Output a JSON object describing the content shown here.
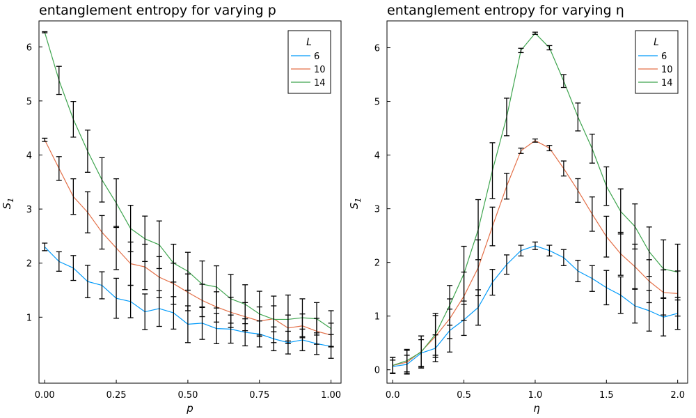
{
  "chart_data": [
    {
      "type": "line",
      "title": "entanglement entropy for varying p",
      "xlabel": "p",
      "ylabel": "S",
      "ylabel_subscript": "1",
      "xlim": [
        -0.02,
        1.035
      ],
      "ylim": [
        -0.22,
        6.48
      ],
      "xticks": [
        0.0,
        0.25,
        0.5,
        0.75,
        1.0
      ],
      "xtick_labels": [
        "0.00",
        "0.25",
        "0.50",
        "0.75",
        "1.00"
      ],
      "yticks": [
        1,
        2,
        3,
        4,
        5,
        6
      ],
      "ytick_labels": [
        "1",
        "2",
        "3",
        "4",
        "5",
        "6"
      ],
      "grid": false,
      "legend_title": "L",
      "legend_position": "top-right",
      "x": [
        0.0,
        0.05,
        0.1,
        0.15,
        0.2,
        0.25,
        0.3,
        0.35,
        0.4,
        0.45,
        0.5,
        0.55,
        0.6,
        0.65,
        0.7,
        0.75,
        0.8,
        0.85,
        0.9,
        0.95,
        1.0
      ],
      "series": [
        {
          "name": "6",
          "color": "#009AFA",
          "values": [
            2.3,
            2.03,
            1.91,
            1.66,
            1.59,
            1.35,
            1.29,
            1.1,
            1.16,
            1.08,
            0.87,
            0.89,
            0.79,
            0.78,
            0.72,
            0.69,
            0.6,
            0.53,
            0.58,
            0.51,
            0.46
          ],
          "errors": [
            0.07,
            0.18,
            0.23,
            0.3,
            0.25,
            0.37,
            0.3,
            0.33,
            0.33,
            0.3,
            0.34,
            0.3,
            0.28,
            0.26,
            0.25,
            0.24,
            0.22,
            0.21,
            0.2,
            0.2,
            0.22
          ]
        },
        {
          "name": "10",
          "color": "#E36F47",
          "values": [
            4.28,
            3.75,
            3.23,
            2.94,
            2.57,
            2.28,
            1.99,
            1.93,
            1.74,
            1.62,
            1.46,
            1.31,
            1.19,
            1.09,
            1.01,
            0.93,
            0.97,
            0.8,
            0.84,
            0.74,
            0.67
          ],
          "errors": [
            0.03,
            0.22,
            0.33,
            0.38,
            0.31,
            0.4,
            0.4,
            0.42,
            0.38,
            0.38,
            0.34,
            0.3,
            0.28,
            0.28,
            0.26,
            0.26,
            0.24,
            0.24,
            0.22,
            0.24,
            0.22
          ]
        },
        {
          "name": "14",
          "color": "#3EA44E",
          "values": [
            6.27,
            5.38,
            4.66,
            4.07,
            3.54,
            3.11,
            2.64,
            2.45,
            2.34,
            2.0,
            1.85,
            1.61,
            1.56,
            1.34,
            1.24,
            1.06,
            0.96,
            0.96,
            0.99,
            0.97,
            0.79
          ],
          "errors": [
            0.01,
            0.26,
            0.33,
            0.39,
            0.41,
            0.45,
            0.43,
            0.42,
            0.44,
            0.35,
            0.35,
            0.43,
            0.39,
            0.45,
            0.36,
            0.42,
            0.43,
            0.45,
            0.35,
            0.3,
            0.33
          ]
        }
      ]
    },
    {
      "type": "line",
      "title": "entanglement entropy for varying η",
      "xlabel": "η",
      "ylabel": "S",
      "ylabel_subscript": "1",
      "xlim": [
        -0.04,
        2.07
      ],
      "ylim": [
        -0.25,
        6.5
      ],
      "xticks": [
        0.0,
        0.5,
        1.0,
        1.5,
        2.0
      ],
      "xtick_labels": [
        "0.0",
        "0.5",
        "1.0",
        "1.5",
        "2.0"
      ],
      "yticks": [
        0,
        1,
        2,
        3,
        4,
        5,
        6
      ],
      "ytick_labels": [
        "0",
        "1",
        "2",
        "3",
        "4",
        "5",
        "6"
      ],
      "grid": false,
      "legend_title": "L",
      "legend_position": "top-right",
      "x": [
        0.0,
        0.1,
        0.2,
        0.3,
        0.4,
        0.5,
        0.6,
        0.7,
        0.8,
        0.9,
        1.0,
        1.1,
        1.2,
        1.3,
        1.4,
        1.5,
        1.6,
        1.7,
        1.8,
        1.9,
        2.0
      ],
      "series": [
        {
          "name": "6",
          "color": "#009AFA",
          "values": [
            0.06,
            0.1,
            0.31,
            0.4,
            0.73,
            0.93,
            1.16,
            1.63,
            1.96,
            2.22,
            2.31,
            2.22,
            2.09,
            1.84,
            1.7,
            1.53,
            1.39,
            1.19,
            1.1,
            0.98,
            1.05
          ],
          "errors": [
            0.12,
            0.17,
            0.25,
            0.25,
            0.4,
            0.29,
            0.33,
            0.24,
            0.18,
            0.1,
            0.07,
            0.1,
            0.15,
            0.2,
            0.24,
            0.32,
            0.34,
            0.32,
            0.38,
            0.35,
            0.3
          ]
        },
        {
          "name": "10",
          "color": "#E36F47",
          "values": [
            0.08,
            0.14,
            0.34,
            0.62,
            0.95,
            1.37,
            1.9,
            2.67,
            3.42,
            4.08,
            4.27,
            4.13,
            3.75,
            3.34,
            2.9,
            2.48,
            2.16,
            1.92,
            1.65,
            1.44,
            1.42
          ],
          "errors": [
            0.15,
            0.22,
            0.29,
            0.39,
            0.37,
            0.45,
            0.52,
            0.36,
            0.24,
            0.05,
            0.03,
            0.05,
            0.14,
            0.22,
            0.32,
            0.38,
            0.4,
            0.42,
            0.4,
            0.42,
            0.42
          ]
        },
        {
          "name": "14",
          "color": "#3EA44E",
          "values": [
            0.08,
            0.17,
            0.33,
            0.66,
            1.2,
            1.79,
            2.61,
            3.71,
            4.71,
            5.95,
            6.27,
            6.0,
            5.38,
            4.71,
            4.12,
            3.42,
            2.95,
            2.67,
            2.2,
            1.88,
            1.82
          ],
          "errors": [
            0.15,
            0.21,
            0.3,
            0.39,
            0.37,
            0.51,
            0.56,
            0.52,
            0.35,
            0.04,
            0.02,
            0.04,
            0.12,
            0.26,
            0.27,
            0.36,
            0.42,
            0.42,
            0.46,
            0.54,
            0.52
          ]
        }
      ]
    }
  ]
}
